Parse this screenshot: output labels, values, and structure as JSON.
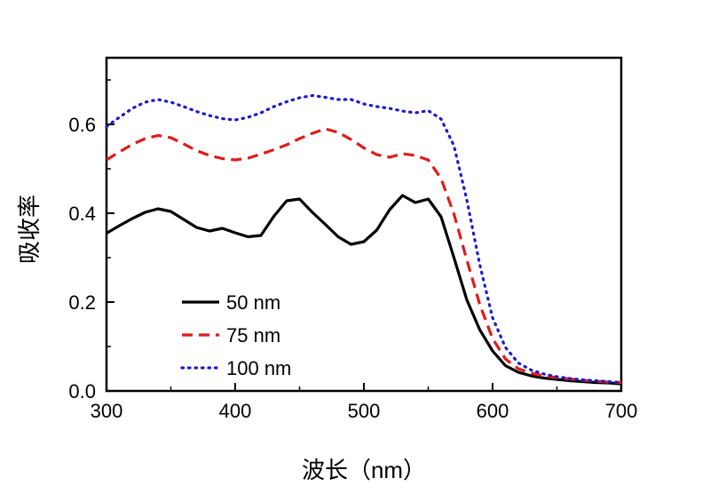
{
  "chart_data": {
    "type": "line",
    "title": "",
    "xlabel": "波长（nm）",
    "ylabel": "吸收率",
    "xlim": [
      300,
      700
    ],
    "ylim": [
      0,
      0.75
    ],
    "grid": false,
    "legend_position": "inside-lower-left",
    "x_tick_values": [
      300,
      400,
      500,
      600,
      700
    ],
    "x_tick_labels": [
      "300",
      "400",
      "500",
      "600",
      "700"
    ],
    "x_minor_tick_values": [
      350,
      450,
      550,
      650
    ],
    "y_tick_values": [
      0.0,
      0.2,
      0.4,
      0.6
    ],
    "y_tick_labels": [
      "0.0",
      "0.2",
      "0.4",
      "0.6"
    ],
    "y_minor_tick_values": [
      0.1,
      0.3,
      0.5,
      0.7
    ],
    "x": [
      300,
      310,
      320,
      330,
      340,
      350,
      360,
      370,
      380,
      390,
      400,
      410,
      420,
      430,
      440,
      450,
      460,
      470,
      480,
      490,
      500,
      510,
      520,
      530,
      540,
      550,
      560,
      570,
      580,
      590,
      600,
      610,
      620,
      630,
      640,
      650,
      660,
      670,
      680,
      690,
      700
    ],
    "series": [
      {
        "name": "50 nm",
        "color": "#000000",
        "style": "solid",
        "values": [
          0.355,
          0.372,
          0.388,
          0.402,
          0.41,
          0.404,
          0.386,
          0.368,
          0.36,
          0.366,
          0.356,
          0.347,
          0.35,
          0.393,
          0.428,
          0.432,
          0.402,
          0.375,
          0.347,
          0.33,
          0.336,
          0.362,
          0.408,
          0.44,
          0.424,
          0.432,
          0.392,
          0.3,
          0.205,
          0.138,
          0.09,
          0.057,
          0.042,
          0.034,
          0.029,
          0.026,
          0.023,
          0.021,
          0.019,
          0.018,
          0.016
        ]
      },
      {
        "name": "75 nm",
        "color": "#e01b1b",
        "style": "dashed",
        "values": [
          0.52,
          0.538,
          0.555,
          0.568,
          0.575,
          0.57,
          0.556,
          0.541,
          0.53,
          0.523,
          0.52,
          0.524,
          0.533,
          0.543,
          0.554,
          0.568,
          0.58,
          0.59,
          0.582,
          0.566,
          0.547,
          0.532,
          0.526,
          0.534,
          0.53,
          0.52,
          0.478,
          0.398,
          0.295,
          0.195,
          0.118,
          0.072,
          0.05,
          0.04,
          0.034,
          0.03,
          0.027,
          0.024,
          0.022,
          0.02,
          0.019
        ]
      },
      {
        "name": "100 nm",
        "color": "#1c1ccd",
        "style": "dotted",
        "values": [
          0.595,
          0.616,
          0.636,
          0.65,
          0.656,
          0.65,
          0.64,
          0.629,
          0.62,
          0.613,
          0.61,
          0.616,
          0.626,
          0.64,
          0.651,
          0.66,
          0.665,
          0.661,
          0.656,
          0.656,
          0.646,
          0.64,
          0.636,
          0.63,
          0.626,
          0.631,
          0.612,
          0.552,
          0.43,
          0.285,
          0.165,
          0.098,
          0.063,
          0.047,
          0.038,
          0.032,
          0.028,
          0.025,
          0.023,
          0.021,
          0.019
        ]
      }
    ]
  }
}
